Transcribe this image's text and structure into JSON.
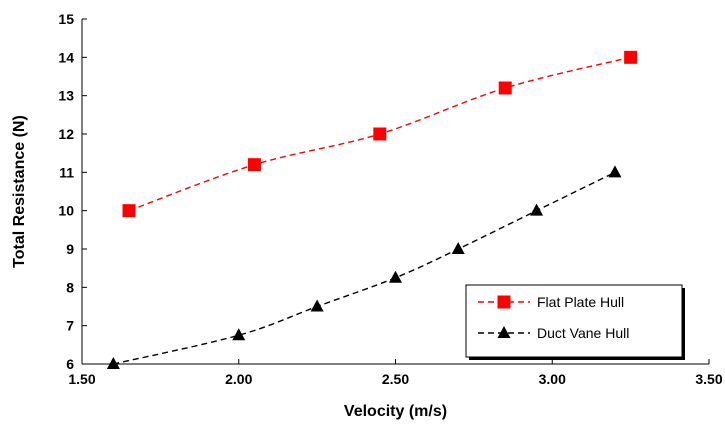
{
  "chart_data": {
    "type": "line",
    "title": "",
    "xlabel": "Velocity (m/s)",
    "ylabel": "Total Resistance (N)",
    "xlim": [
      1.5,
      3.5
    ],
    "ylim": [
      6,
      15
    ],
    "xticks": [
      "1.50",
      "2.00",
      "2.50",
      "3.00",
      "3.50"
    ],
    "yticks": [
      "6",
      "7",
      "8",
      "9",
      "10",
      "11",
      "12",
      "13",
      "14",
      "15"
    ],
    "grid": false,
    "legend_position": "bottom-right",
    "series": [
      {
        "name": "Flat Plate Hull",
        "color": "#ff0000",
        "marker": "square",
        "line_style": "dashed",
        "x": [
          1.65,
          2.05,
          2.45,
          2.85,
          3.25
        ],
        "y": [
          10.0,
          11.2,
          12.0,
          13.2,
          14.0
        ]
      },
      {
        "name": "Duct Vane Hull",
        "color": "#000000",
        "marker": "triangle",
        "line_style": "dashed",
        "x": [
          1.6,
          2.0,
          2.25,
          2.5,
          2.7,
          2.95,
          3.2
        ],
        "y": [
          6.0,
          6.75,
          7.5,
          8.25,
          9.0,
          10.0,
          11.0
        ]
      }
    ]
  }
}
